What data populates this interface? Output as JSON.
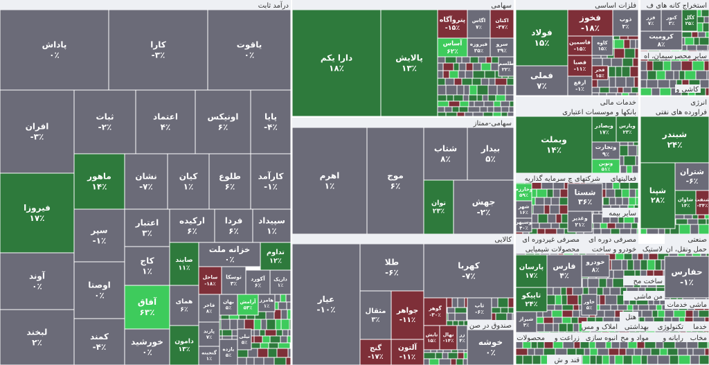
{
  "headers": [
    "درآمد ثابت",
    "سهامی",
    "سهامی-ممتاز",
    "کالایی",
    "صندوق در صن",
    "فلزات اساسی",
    "استخراج کانه های ف",
    "سیمان، اه",
    "سایر محصو",
    "کاشی و",
    "خدمات مالی",
    "انرژی",
    "بانکها و موسسات اعتباری",
    "فراورده های نفتی",
    "سرمایه گذاریه",
    "شرکتهای چ",
    "فعالیتهای",
    "سایر بیمه",
    "صنعتی",
    "حمل ونقل، ان",
    "مصرفی غیردوره ای",
    "مصرفی دوره ای",
    "محصولات شیمیایی",
    "خودرو و ساخت",
    "لاستیک",
    "ساخت مح",
    "من ماشی",
    "هتل",
    "ماشی خدمات",
    "املاک و مس",
    "بهداشتی",
    "تکنولوژی",
    "خدما",
    "محصولات غذ",
    "زراعت و",
    "انبوه سازی",
    "مواد و مح",
    "رایانه و",
    "مخاب",
    "قند و ش"
  ],
  "tiles": [
    {
      "name": "پاداش",
      "change": "۰٪",
      "color": "#6b6b78"
    },
    {
      "name": "کارا",
      "change": "-۳٪",
      "color": "#6b6b78"
    },
    {
      "name": "یاقوت",
      "change": "۰٪",
      "color": "#6b6b78"
    },
    {
      "name": "افران",
      "change": "-۳٪",
      "color": "#6b6b78"
    },
    {
      "name": "ثبات",
      "change": "-۲٪",
      "color": "#6b6b78"
    },
    {
      "name": "اعتماد",
      "change": "۴٪",
      "color": "#6b6b78"
    },
    {
      "name": "اونیکس",
      "change": "۶٪",
      "color": "#6b6b78"
    },
    {
      "name": "پایا",
      "change": "-۴٪",
      "color": "#6b6b78"
    },
    {
      "name": "فیروزا",
      "change": "۱۷٪",
      "color": "#2e7a3c"
    },
    {
      "name": "آوند",
      "change": "۰٪",
      "color": "#6b6b78"
    },
    {
      "name": "لبخند",
      "change": "۲٪",
      "color": "#6b6b78"
    },
    {
      "name": "ماهور",
      "change": "۱۴٪",
      "color": "#2e7a3c"
    },
    {
      "name": "نشان",
      "change": "-۷٪",
      "color": "#6b6b78"
    },
    {
      "name": "کیان",
      "change": "۱٪",
      "color": "#6b6b78"
    },
    {
      "name": "طلوع",
      "change": "۶٪",
      "color": "#6b6b78"
    },
    {
      "name": "کارآمد",
      "change": "-۱٪",
      "color": "#6b6b78"
    },
    {
      "name": "سپر",
      "change": "-۱٪",
      "color": "#6b6b78"
    },
    {
      "name": "اوصتا",
      "change": "۰٪",
      "color": "#6b6b78"
    },
    {
      "name": "کمند",
      "change": "-۴٪",
      "color": "#6b6b78"
    },
    {
      "name": "اعتبار",
      "change": "۳٪",
      "color": "#6b6b78"
    },
    {
      "name": "ارکیده",
      "change": "۶٪",
      "color": "#6b6b78"
    },
    {
      "name": "فردا",
      "change": "۶٪",
      "color": "#6b6b78"
    },
    {
      "name": "سپیداد",
      "change": "۱٪",
      "color": "#6b6b78"
    },
    {
      "name": "کاج",
      "change": "۱٪",
      "color": "#6b6b78"
    },
    {
      "name": "آفاق",
      "change": "۶۳٪",
      "color": "#3ecb5c"
    },
    {
      "name": "خورشید",
      "change": "۰٪",
      "color": "#6b6b78"
    },
    {
      "name": "صایند",
      "change": "۱۱٪",
      "color": "#2e7a3c"
    },
    {
      "name": "همای",
      "change": "۶٪",
      "color": "#6b6b78"
    },
    {
      "name": "دامون",
      "change": "۱۳٪",
      "color": "#2e7a3c"
    },
    {
      "name": "خزانه ملت",
      "change": "۰٪",
      "color": "#6b6b78"
    },
    {
      "name": "تداوم",
      "change": "۱۲٪",
      "color": "#2e7a3c"
    },
    {
      "name": "ساحل",
      "change": "-۱۸٪",
      "color": "#7e2f38"
    },
    {
      "name": "توسکا",
      "change": "۳٪",
      "color": "#6b6b78"
    },
    {
      "name": "آکورد",
      "change": "۶٪",
      "color": "#6b6b78"
    },
    {
      "name": "داریک",
      "change": "۱٪",
      "color": "#6b6b78"
    },
    {
      "name": "فاخر",
      "change": "۸٪",
      "color": "#6b6b78"
    },
    {
      "name": "بهان",
      "change": "۵٪",
      "color": "#6b6b78"
    },
    {
      "name": "آرامش",
      "change": "۵۳٪",
      "color": "#3ecb5c"
    },
    {
      "name": "هامرز",
      "change": "۱٪",
      "color": "#6b6b78"
    },
    {
      "name": "پارند",
      "change": "۷٪",
      "color": "#6b6b78"
    },
    {
      "name": "گنجینه",
      "change": "۱٪",
      "color": "#6b6b78"
    },
    {
      "name": "بازده",
      "change": "۵٪",
      "color": "#6b6b78"
    },
    {
      "name": "نیلی",
      "change": "۵٪",
      "color": "#6b6b78"
    },
    {
      "name": "دارا یکم",
      "change": "۱۸٪",
      "color": "#2e7a3c"
    },
    {
      "name": "پالایش",
      "change": "۱۳٪",
      "color": "#2e7a3c"
    },
    {
      "name": "پتروآگاه",
      "change": "-۱۵٪",
      "color": "#7e2f38"
    },
    {
      "name": "اگاس",
      "change": "۷٪",
      "color": "#6b6b78"
    },
    {
      "name": "اکتان",
      "change": "-۳۷٪",
      "color": "#7e2f38"
    },
    {
      "name": "آساس",
      "change": "۶۲٪",
      "color": "#3ecb5c"
    },
    {
      "name": "فیروزه",
      "change": "۳۵٪",
      "color": "#6b6b78"
    },
    {
      "name": "سرو",
      "change": "۳۹٪",
      "color": "#6b6b78"
    },
    {
      "name": "طلسم",
      "change": "۲۲٪",
      "color": "#6b6b78"
    },
    {
      "name": "اهرم",
      "change": "۱٪",
      "color": "#6b6b78"
    },
    {
      "name": "موج",
      "change": "۶٪",
      "color": "#6b6b78"
    },
    {
      "name": "شتاب",
      "change": "۸٪",
      "color": "#6b6b78"
    },
    {
      "name": "بیدار",
      "change": "۵٪",
      "color": "#6b6b78"
    },
    {
      "name": "توان",
      "change": "۲۳٪",
      "color": "#2e7a3c"
    },
    {
      "name": "جهش",
      "change": "-۲٪",
      "color": "#6b6b78"
    },
    {
      "name": "عیار",
      "change": "-۱۰٪",
      "color": "#6b6b78"
    },
    {
      "name": "طلا",
      "change": "-۶٪",
      "color": "#6b6b78"
    },
    {
      "name": "کهربا",
      "change": "-۷٪",
      "color": "#6b6b78"
    },
    {
      "name": "مثقال",
      "change": "۳٪",
      "color": "#6b6b78"
    },
    {
      "name": "جواهر",
      "change": "-۱۱٪",
      "color": "#7e2f38"
    },
    {
      "name": "گوهر",
      "change": "-۳۰٪",
      "color": "#7e2f38"
    },
    {
      "name": "تاب",
      "change": "-۶٪",
      "color": "#6b6b78"
    },
    {
      "name": "گنج",
      "change": "-۱۷٪",
      "color": "#7e2f38"
    },
    {
      "name": "آلتون",
      "change": "-۱۱٪",
      "color": "#7e2f38"
    },
    {
      "name": "تابش",
      "change": "۱۵٪",
      "color": "#7e2f38"
    },
    {
      "name": "نهال",
      "change": "-۱۴٪",
      "color": "#7e2f38"
    },
    {
      "name": "زر",
      "change": "۴٪",
      "color": "#6b6b78"
    },
    {
      "name": "خوشه",
      "change": "۰٪",
      "color": "#6b6b78"
    },
    {
      "name": "فولاد",
      "change": "۱۵٪",
      "color": "#2e7a3c"
    },
    {
      "name": "فخوز",
      "change": "-۱۸٪",
      "color": "#7e2f38"
    },
    {
      "name": "ذوب",
      "change": "۳٪",
      "color": "#6b6b78"
    },
    {
      "name": "فملی",
      "change": "۷٪",
      "color": "#6b6b78"
    },
    {
      "name": "فاسمین",
      "change": "-۱۵٪",
      "color": "#7e2f38"
    },
    {
      "name": "کاوه",
      "change": "۱۵٪",
      "color": "#6b6b78"
    },
    {
      "name": "فصبا",
      "change": "-۱۱٪",
      "color": "#7e2f38"
    },
    {
      "name": "ارفع",
      "change": "-۱٪",
      "color": "#6b6b78"
    },
    {
      "name": "فجر",
      "change": "۱۵٪",
      "color": "#7e2f38"
    },
    {
      "name": "فزر",
      "change": "۷٪",
      "color": "#6b6b78"
    },
    {
      "name": "کنور",
      "change": "۳٪",
      "color": "#6b6b78"
    },
    {
      "name": "کگل",
      "change": "۲۵٪",
      "color": "#2e7a3c"
    },
    {
      "name": "کرومیت",
      "change": "۸٪",
      "color": "#6b6b78"
    },
    {
      "name": "وبملت",
      "change": "۱۴٪",
      "color": "#2e7a3c"
    },
    {
      "name": "وبصادر",
      "change": "۱۷٪",
      "color": "#2e7a3c"
    },
    {
      "name": "وپارس",
      "change": "۲۳٪",
      "color": "#2e7a3c"
    },
    {
      "name": "وتجارت",
      "change": "۹٪",
      "color": "#6b6b78"
    },
    {
      "name": "ونوین",
      "change": "۵۱٪",
      "color": "#3ecb5c"
    },
    {
      "name": "شبندر",
      "change": "۲۴٪",
      "color": "#2e7a3c"
    },
    {
      "name": "شپنا",
      "change": "۲۸٪",
      "color": "#2e7a3c"
    },
    {
      "name": "شتران",
      "change": "-۶٪",
      "color": "#6b6b78"
    },
    {
      "name": "شاوان",
      "change": "۱۴٪",
      "color": "#2e7a3c"
    },
    {
      "name": "شنفت",
      "change": "-۳۴٪",
      "color": "#7e2f38"
    },
    {
      "name": "وخارزم",
      "change": "۵۹٪",
      "color": "#3ecb5c"
    },
    {
      "name": "شهر",
      "change": "۱۶٪",
      "color": "#6b6b78"
    },
    {
      "name": "وسپهر",
      "change": "۴۰٪",
      "color": "#6b6b78"
    },
    {
      "name": "شستا",
      "change": "۳۶٪",
      "color": "#6b6b78"
    },
    {
      "name": "وغدیر",
      "change": "۲۱٪",
      "color": "#6b6b78"
    },
    {
      "name": "پارسان",
      "change": "۱۷٪",
      "color": "#2e7a3c"
    },
    {
      "name": "فارس",
      "change": "۴٪",
      "color": "#6b6b78"
    },
    {
      "name": "تاپیکو",
      "change": "۲۴٪",
      "color": "#2e7a3c"
    },
    {
      "name": "شیراز",
      "change": "۴٪",
      "color": "#6b6b78"
    },
    {
      "name": "خودرو",
      "change": "۸٪",
      "color": "#6b6b78"
    },
    {
      "name": "خاور",
      "change": "۵٪",
      "color": "#6b6b78"
    },
    {
      "name": "حفارس",
      "change": "-۱٪",
      "color": "#6b6b78"
    }
  ]
}
